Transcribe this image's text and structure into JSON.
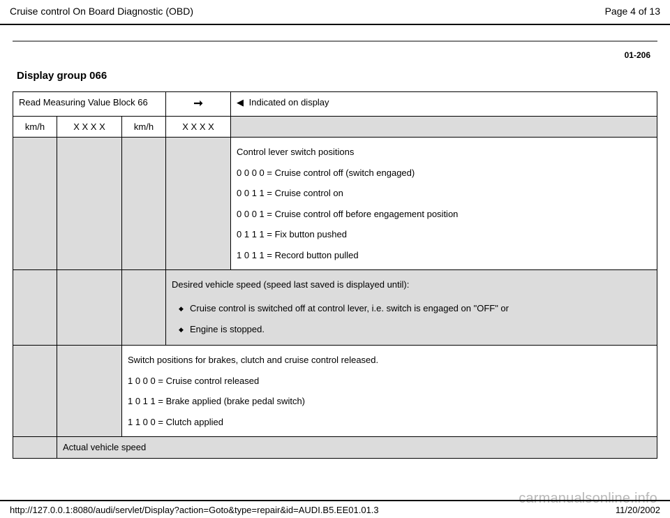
{
  "header": {
    "title": "Cruise control On Board Diagnostic (OBD)",
    "page_info": "Page 4 of 13"
  },
  "page_code": "01-206",
  "section_title": "Display group 066",
  "row1": {
    "c1": "Read Measuring Value Block 66",
    "c3_prefix": " Indicated on display"
  },
  "row2": {
    "c1": "km/h",
    "c2": "X X X X",
    "c3": "km/h",
    "c4": "X X X X"
  },
  "block_control_lever": {
    "title": "Control lever switch positions",
    "p1": "0 0 0 0 = Cruise control off (switch engaged)",
    "p2": "0 0 1 1 = Cruise control on",
    "p3": "0 0 0 1 = Cruise control off before engagement position",
    "p4": "0 1 1 1 = Fix button pushed",
    "p5": "1 0 1 1 = Record button pulled"
  },
  "block_desired_speed": {
    "title": "Desired vehicle speed (speed last saved is displayed until):",
    "b1": "Cruise control is switched off at control lever, i.e. switch is engaged on \"OFF\" or",
    "b2": "Engine is stopped."
  },
  "block_switch_positions": {
    "title": "Switch positions for brakes, clutch and cruise control released.",
    "p1": "1 0 0 0 = Cruise control released",
    "p2": "1 0 1 1 = Brake applied (brake pedal switch)",
    "p3": "1 1 0 0 = Clutch applied"
  },
  "block_actual_speed": "Actual vehicle speed",
  "footer": {
    "url": "http://127.0.0.1:8080/audi/servlet/Display?action=Goto&type=repair&id=AUDI.B5.EE01.01.3",
    "date": "11/20/2002"
  },
  "watermark": "carmanualsonline.info"
}
